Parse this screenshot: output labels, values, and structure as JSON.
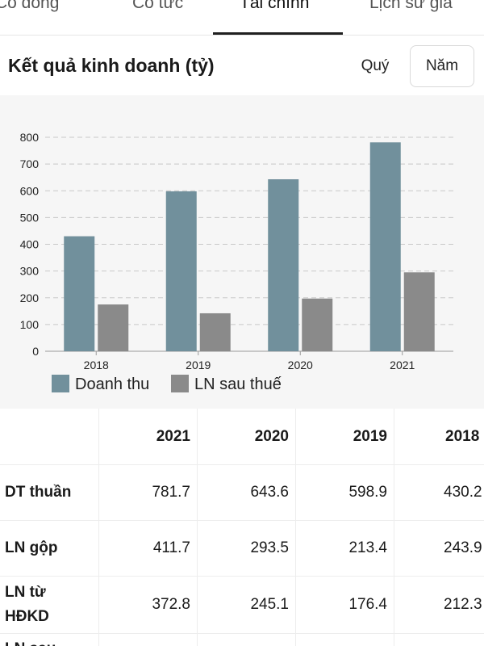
{
  "tabs": [
    {
      "label": "Cổ đông",
      "active": false
    },
    {
      "label": "Cổ tức",
      "active": false
    },
    {
      "label": "Tài chính",
      "active": true
    },
    {
      "label": "Lịch sử giá",
      "active": false
    }
  ],
  "header": {
    "title": "Kết quả kinh doanh (tỷ)",
    "period_quarter": "Quý",
    "period_year": "Năm"
  },
  "colors": {
    "revenue": "#71909c",
    "profit": "#8a8a8a",
    "grid": "#c8c8c8"
  },
  "chart_data": {
    "type": "bar",
    "categories": [
      "2018",
      "2019",
      "2020",
      "2021"
    ],
    "series": [
      {
        "name": "Doanh thu",
        "values": [
          430,
          598,
          643,
          781
        ]
      },
      {
        "name": "LN sau thuế",
        "values": [
          175,
          142,
          197,
          295
        ]
      }
    ],
    "ylim": [
      0,
      800
    ],
    "yticks": [
      0,
      100,
      200,
      300,
      400,
      500,
      600,
      700,
      800
    ],
    "grid": true,
    "legend_position": "bottom-left"
  },
  "table": {
    "columns": [
      "2021",
      "2020",
      "2019",
      "2018"
    ],
    "rows": [
      {
        "label": "DT thuần",
        "values": [
          "781.7",
          "643.6",
          "598.9",
          "430.2"
        ]
      },
      {
        "label": "LN gộp",
        "values": [
          "411.7",
          "293.5",
          "213.4",
          "243.9"
        ]
      },
      {
        "label": "LN từ HĐKD",
        "values": [
          "372.8",
          "245.1",
          "176.4",
          "212.3"
        ]
      },
      {
        "label": "LN sau",
        "values": [
          "",
          "",
          "",
          ""
        ]
      }
    ]
  }
}
